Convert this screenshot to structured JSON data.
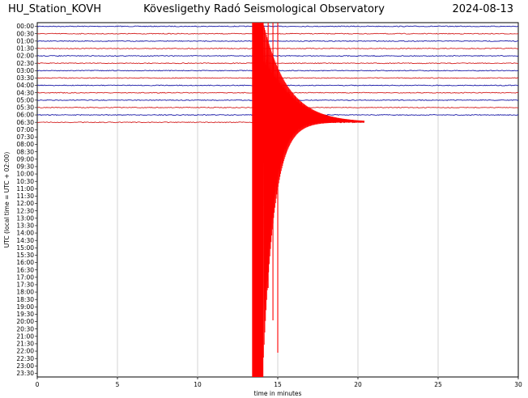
{
  "header": {
    "station": "HU_Station_KOVH",
    "title": "Kövesligethy Radó Seismological Observatory",
    "date": "2024-08-13"
  },
  "chart_data": {
    "type": "line",
    "title": "Kövesligethy Radó Seismological Observatory",
    "xlabel": "time in minutes",
    "ylabel": "UTC (local time = UTC + 02:00)",
    "xlim": [
      0,
      30
    ],
    "xticks": [
      0,
      5,
      10,
      15,
      20,
      25,
      30
    ],
    "grid": true,
    "rows": [
      "00:00",
      "00:30",
      "01:00",
      "01:30",
      "02:00",
      "02:30",
      "03:00",
      "03:30",
      "04:00",
      "04:30",
      "05:00",
      "05:30",
      "06:00",
      "06:30",
      "07:00",
      "07:30",
      "08:00",
      "08:30",
      "09:00",
      "09:30",
      "10:00",
      "10:30",
      "11:00",
      "11:30",
      "12:00",
      "12:30",
      "13:00",
      "13:30",
      "14:00",
      "14:30",
      "15:00",
      "15:30",
      "16:00",
      "16:30",
      "17:00",
      "17:30",
      "18:00",
      "18:30",
      "19:00",
      "19:30",
      "20:00",
      "20:30",
      "21:00",
      "21:30",
      "22:00",
      "22:30",
      "23:00",
      "23:30"
    ],
    "trace_colors": [
      "#1a1aa8",
      "#d42020",
      "#1a1aa8",
      "#d42020",
      "#1a1aa8",
      "#d42020",
      "#1a1aa8",
      "#d42020",
      "#1a1aa8",
      "#d42020",
      "#1a1aa8",
      "#d42020",
      "#1a1aa8",
      "#d42020"
    ],
    "traces_recorded_until": "06:30",
    "last_trace_end_minute": 20.4,
    "event": {
      "start_minute": 13.4,
      "peak_end_minute": 14.1,
      "coda_end_minute": 20.4,
      "row_start": "00:00",
      "row_end": "23:30",
      "color": "#ff0000"
    }
  }
}
